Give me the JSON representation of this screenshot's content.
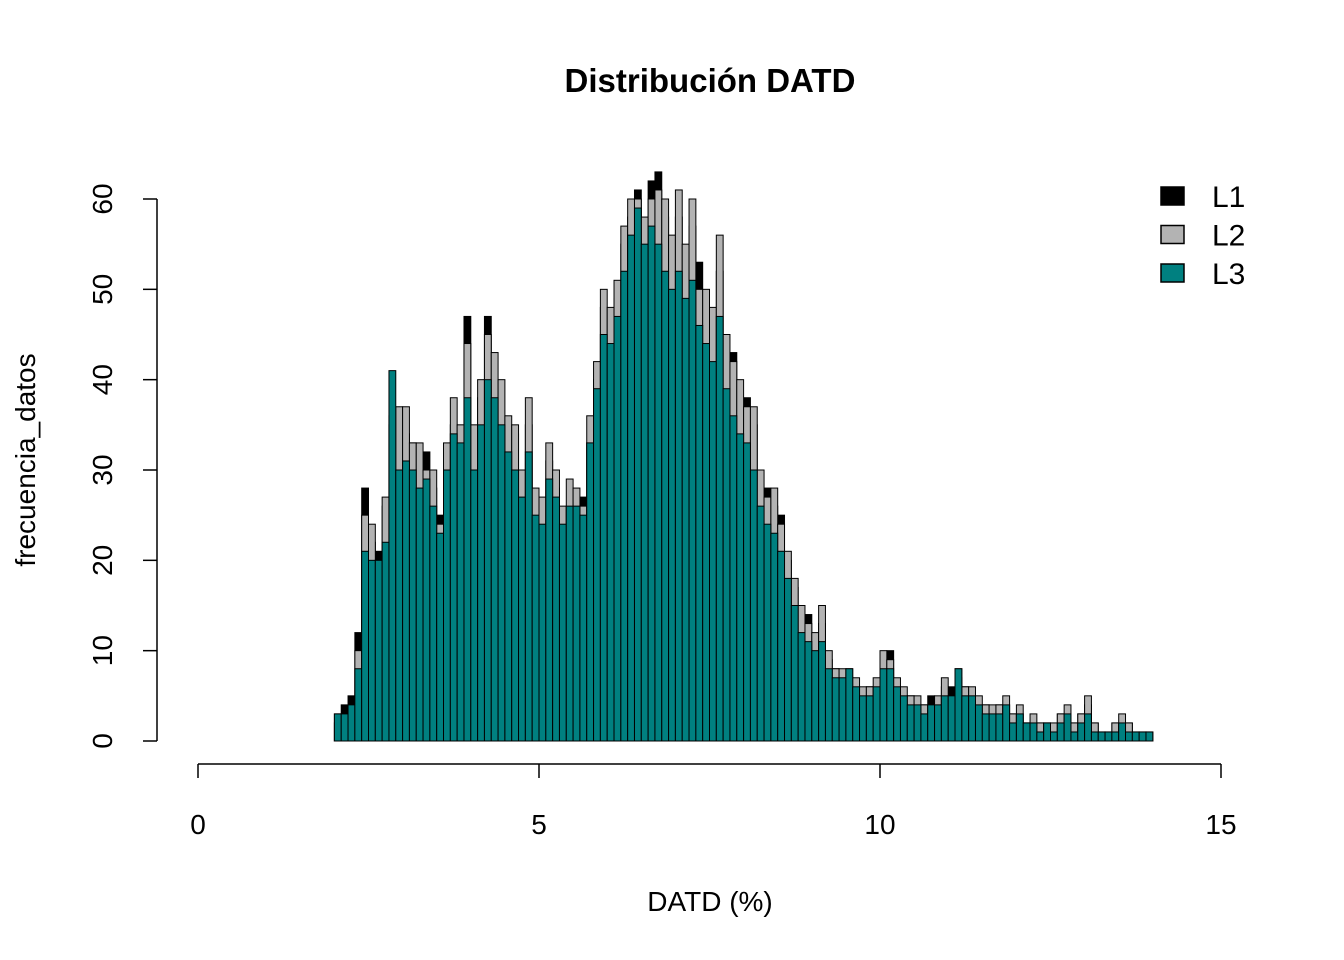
{
  "chart_data": {
    "type": "bar",
    "title": "Distribución DATD",
    "xlabel": "DATD (%)",
    "ylabel": "frecuencia_datos",
    "xlim": [
      0,
      15
    ],
    "ylim": [
      0,
      60
    ],
    "x_ticks": [
      "0",
      "5",
      "10",
      "15"
    ],
    "x_tick_values": [
      0,
      5,
      10,
      15
    ],
    "y_ticks": [
      "0",
      "10",
      "20",
      "30",
      "40",
      "50",
      "60"
    ],
    "y_tick_values": [
      0,
      10,
      20,
      30,
      40,
      50,
      60
    ],
    "bin_start": 2.0,
    "bin_width": 0.1,
    "legend_position": "top-right",
    "series": [
      {
        "name": "L1",
        "color": "#000000",
        "values": [
          3,
          4,
          5,
          12,
          28,
          22,
          21,
          26,
          36,
          35,
          34,
          33,
          30,
          32,
          28,
          25,
          30,
          35,
          34,
          47,
          33,
          38,
          47,
          40,
          36,
          33,
          34,
          27,
          35,
          26,
          24,
          31,
          28,
          23,
          26,
          25,
          27,
          33,
          40,
          48,
          46,
          49,
          55,
          58,
          61,
          56,
          62,
          63,
          58,
          53,
          58,
          52,
          57,
          53,
          47,
          46,
          52,
          42,
          43,
          38,
          38,
          35,
          28,
          28,
          26,
          25,
          20,
          17,
          14,
          14,
          11,
          13,
          9,
          8,
          7,
          7,
          6,
          5,
          6,
          6,
          9,
          10,
          6,
          5,
          5,
          4,
          4,
          5,
          4,
          6,
          6,
          7,
          6,
          5,
          4,
          4,
          3,
          4,
          4,
          3,
          3,
          2,
          2,
          2,
          2,
          1,
          3,
          3,
          2,
          3,
          4,
          2,
          1,
          1,
          2,
          2,
          2,
          1,
          1,
          1
        ]
      },
      {
        "name": "L2",
        "color": "#b3b3b3",
        "values": [
          2,
          3,
          4,
          10,
          25,
          24,
          20,
          27,
          35,
          37,
          37,
          33,
          33,
          30,
          30,
          24,
          33,
          38,
          35,
          44,
          35,
          40,
          45,
          43,
          40,
          36,
          35,
          30,
          38,
          28,
          27,
          33,
          30,
          26,
          29,
          28,
          26,
          36,
          42,
          50,
          48,
          51,
          57,
          60,
          60,
          58,
          60,
          61,
          60,
          56,
          61,
          55,
          60,
          50,
          50,
          48,
          56,
          45,
          42,
          40,
          37,
          37,
          30,
          27,
          28,
          24,
          21,
          18,
          15,
          13,
          12,
          15,
          10,
          8,
          8,
          8,
          7,
          6,
          6,
          7,
          10,
          9,
          7,
          6,
          5,
          5,
          4,
          4,
          5,
          7,
          5,
          8,
          6,
          6,
          5,
          4,
          4,
          4,
          5,
          3,
          4,
          2,
          3,
          2,
          2,
          2,
          3,
          4,
          2,
          3,
          5,
          2,
          1,
          1,
          2,
          3,
          2,
          1,
          1,
          1
        ]
      },
      {
        "name": "L3",
        "color": "#008080",
        "values": [
          3,
          3,
          4,
          8,
          21,
          20,
          20,
          22,
          41,
          30,
          31,
          30,
          28,
          29,
          26,
          23,
          30,
          34,
          33,
          38,
          30,
          35,
          40,
          38,
          35,
          32,
          30,
          27,
          32,
          25,
          24,
          29,
          27,
          24,
          26,
          26,
          25,
          33,
          39,
          45,
          44,
          47,
          52,
          56,
          59,
          55,
          57,
          55,
          52,
          50,
          52,
          49,
          51,
          46,
          44,
          42,
          47,
          39,
          36,
          34,
          33,
          30,
          26,
          24,
          23,
          21,
          18,
          15,
          12,
          11,
          10,
          11,
          8,
          7,
          7,
          8,
          6,
          5,
          5,
          6,
          8,
          8,
          6,
          5,
          4,
          4,
          3,
          4,
          4,
          5,
          5,
          8,
          5,
          5,
          4,
          3,
          3,
          3,
          4,
          2,
          3,
          2,
          2,
          1,
          2,
          1,
          2,
          3,
          1,
          2,
          3,
          1,
          1,
          1,
          1,
          2,
          1,
          1,
          1,
          1
        ]
      }
    ]
  }
}
